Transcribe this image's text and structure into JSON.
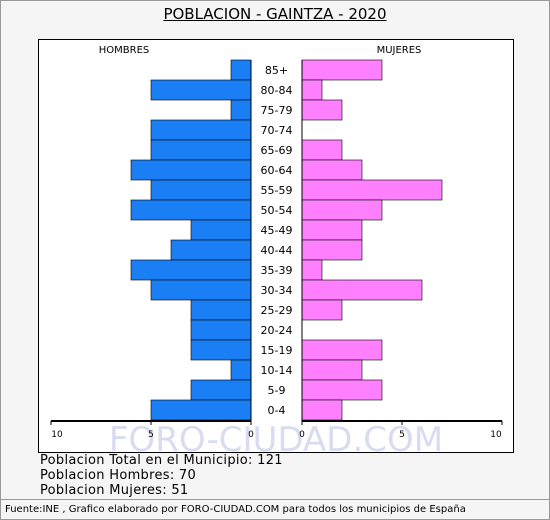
{
  "title": "POBLACION - GAINTZA - 2020",
  "watermark": "FORO-CIUDAD.COM",
  "stats": {
    "total": "Poblacion Total en el Municipio: 121",
    "hombres": "Poblacion Hombres: 70",
    "mujeres": "Poblacion Mujeres: 51"
  },
  "footer": "Fuente:INE , Grafico elaborado por FORO-CIUDAD.COM para todos los municipios de España",
  "chart_data": {
    "type": "bar",
    "orientation": "horizontal-pyramid",
    "left_label": "HOMBRES",
    "right_label": "MUJERES",
    "categories": [
      "85+",
      "80-84",
      "75-79",
      "70-74",
      "65-69",
      "60-64",
      "55-59",
      "50-54",
      "45-49",
      "40-44",
      "35-39",
      "30-34",
      "25-29",
      "20-24",
      "15-19",
      "10-14",
      "5-9",
      "0-4"
    ],
    "series": [
      {
        "name": "HOMBRES",
        "color": "#1a7ff5",
        "values": [
          1,
          5,
          1,
          5,
          5,
          6,
          5,
          6,
          3,
          4,
          6,
          5,
          3,
          3,
          3,
          1,
          3,
          5
        ]
      },
      {
        "name": "MUJERES",
        "color": "#ff80ff",
        "values": [
          4,
          1,
          2,
          0,
          2,
          3,
          7,
          4,
          3,
          3,
          1,
          6,
          2,
          0,
          4,
          3,
          4,
          2
        ]
      }
    ],
    "xlim": [
      0,
      10
    ],
    "x_ticks_left": [
      "10",
      "5",
      "0"
    ],
    "x_ticks_right": [
      "0",
      "5",
      "10"
    ]
  }
}
